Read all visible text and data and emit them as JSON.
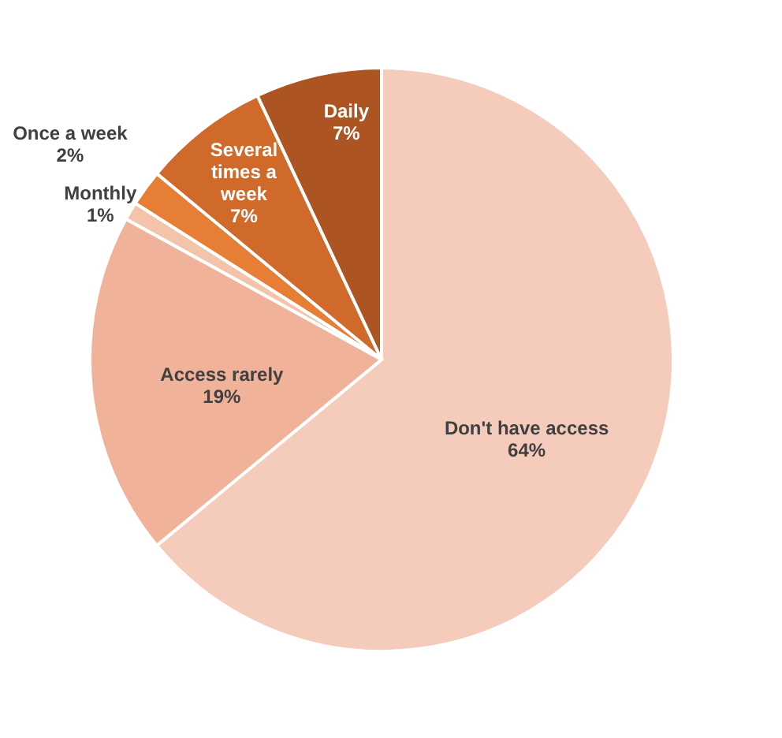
{
  "chart_data": {
    "type": "pie",
    "categories": [
      "Don't have access",
      "Access rarely",
      "Monthly",
      "Once a week",
      "Several times a week",
      "Daily"
    ],
    "values": [
      64,
      19,
      1,
      2,
      7,
      7
    ],
    "value_labels": [
      "64%",
      "19%",
      "1%",
      "2%",
      "7%",
      "7%"
    ],
    "colors": [
      "#f5cbbb",
      "#f0b298",
      "#f3c3aa",
      "#e67e35",
      "#cf6a2b",
      "#ad5522"
    ],
    "legend": false
  }
}
